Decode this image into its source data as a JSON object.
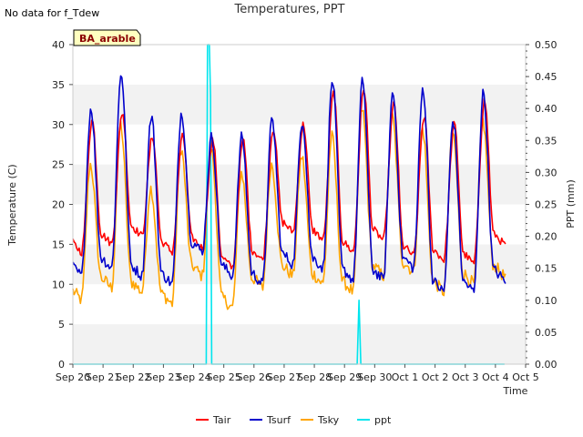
{
  "chart_data": {
    "type": "line",
    "title": "Temperatures, PPT",
    "note": "No data for f_Tdew",
    "site_label": "BA_arable",
    "xlabel": "Time",
    "ylabel_left": "Temperature (C)",
    "ylabel_right": "PPT (mm)",
    "ylim_left": [
      0,
      40
    ],
    "ylim_right": [
      0,
      0.5
    ],
    "x_range_days": [
      "Sep 20",
      "Oct 5"
    ],
    "x_tick_labels": [
      "Sep 20",
      "Sep 21",
      "Sep 22",
      "Sep 23",
      "Sep 24",
      "Sep 25",
      "Sep 26",
      "Sep 27",
      "Sep 28",
      "Sep 29",
      "Sep 30",
      "Oct 1",
      "Oct 2",
      "Oct 3",
      "Oct 4",
      "Oct 5"
    ],
    "y_ticks_left": [
      "0",
      "5",
      "10",
      "15",
      "20",
      "25",
      "30",
      "35",
      "40"
    ],
    "y_ticks_right": [
      "0.00",
      "0.05",
      "0.10",
      "0.15",
      "0.20",
      "0.25",
      "0.30",
      "0.35",
      "0.40",
      "0.45",
      "0.50"
    ],
    "grid": "horizontal bands",
    "legend_position": "bottom",
    "daily_series": {
      "dates": [
        "Sep 20",
        "Sep 21",
        "Sep 22",
        "Sep 23",
        "Sep 24",
        "Sep 25",
        "Sep 26",
        "Sep 27",
        "Sep 28",
        "Sep 29",
        "Sep 30",
        "Oct 1",
        "Oct 2",
        "Oct 3",
        "Oct 4"
      ],
      "Tair_max": [
        30.5,
        31.5,
        28.5,
        28.5,
        28.0,
        28.0,
        29.5,
        30.0,
        34.0,
        34.5,
        32.5,
        31.0,
        30.0,
        33.0,
        17.5
      ],
      "Tair_min": [
        14.0,
        15.0,
        16.0,
        14.0,
        14.5,
        12.0,
        13.0,
        16.5,
        15.5,
        14.0,
        15.5,
        13.5,
        13.0,
        12.5,
        15.0
      ],
      "Tsurf_max": [
        32.0,
        36.5,
        31.0,
        31.5,
        28.5,
        28.5,
        30.5,
        30.5,
        35.5,
        35.5,
        34.0,
        34.5,
        30.5,
        34.0,
        11.0
      ],
      "Tsurf_min": [
        11.0,
        12.0,
        11.0,
        10.0,
        14.0,
        11.0,
        10.0,
        12.5,
        12.0,
        10.5,
        10.5,
        12.0,
        9.0,
        9.0,
        10.5
      ],
      "Tsky_max": [
        25.0,
        30.0,
        22.0,
        27.0,
        27.0,
        24.0,
        25.0,
        26.0,
        28.5,
        32.0,
        31.0,
        29.5,
        29.0,
        30.5,
        12.5
      ],
      "Tsky_min": [
        8.0,
        9.5,
        9.0,
        7.5,
        11.0,
        7.0,
        9.5,
        11.0,
        10.0,
        9.0,
        11.0,
        11.5,
        9.0,
        10.0,
        11.0
      ]
    },
    "ppt": {
      "x_days": [
        0,
        4.42,
        4.46,
        4.52,
        4.56,
        4.6,
        9.42,
        9.48,
        9.54,
        14.3
      ],
      "values": [
        0,
        0,
        0.5,
        0.5,
        0.42,
        0,
        0,
        0.1,
        0,
        0
      ]
    },
    "series": [
      {
        "name": "Tair",
        "color": "#ff0000"
      },
      {
        "name": "Tsurf",
        "color": "#0000cc"
      },
      {
        "name": "Tsky",
        "color": "#ffa500"
      },
      {
        "name": "ppt",
        "color": "#00e5ee"
      }
    ]
  }
}
